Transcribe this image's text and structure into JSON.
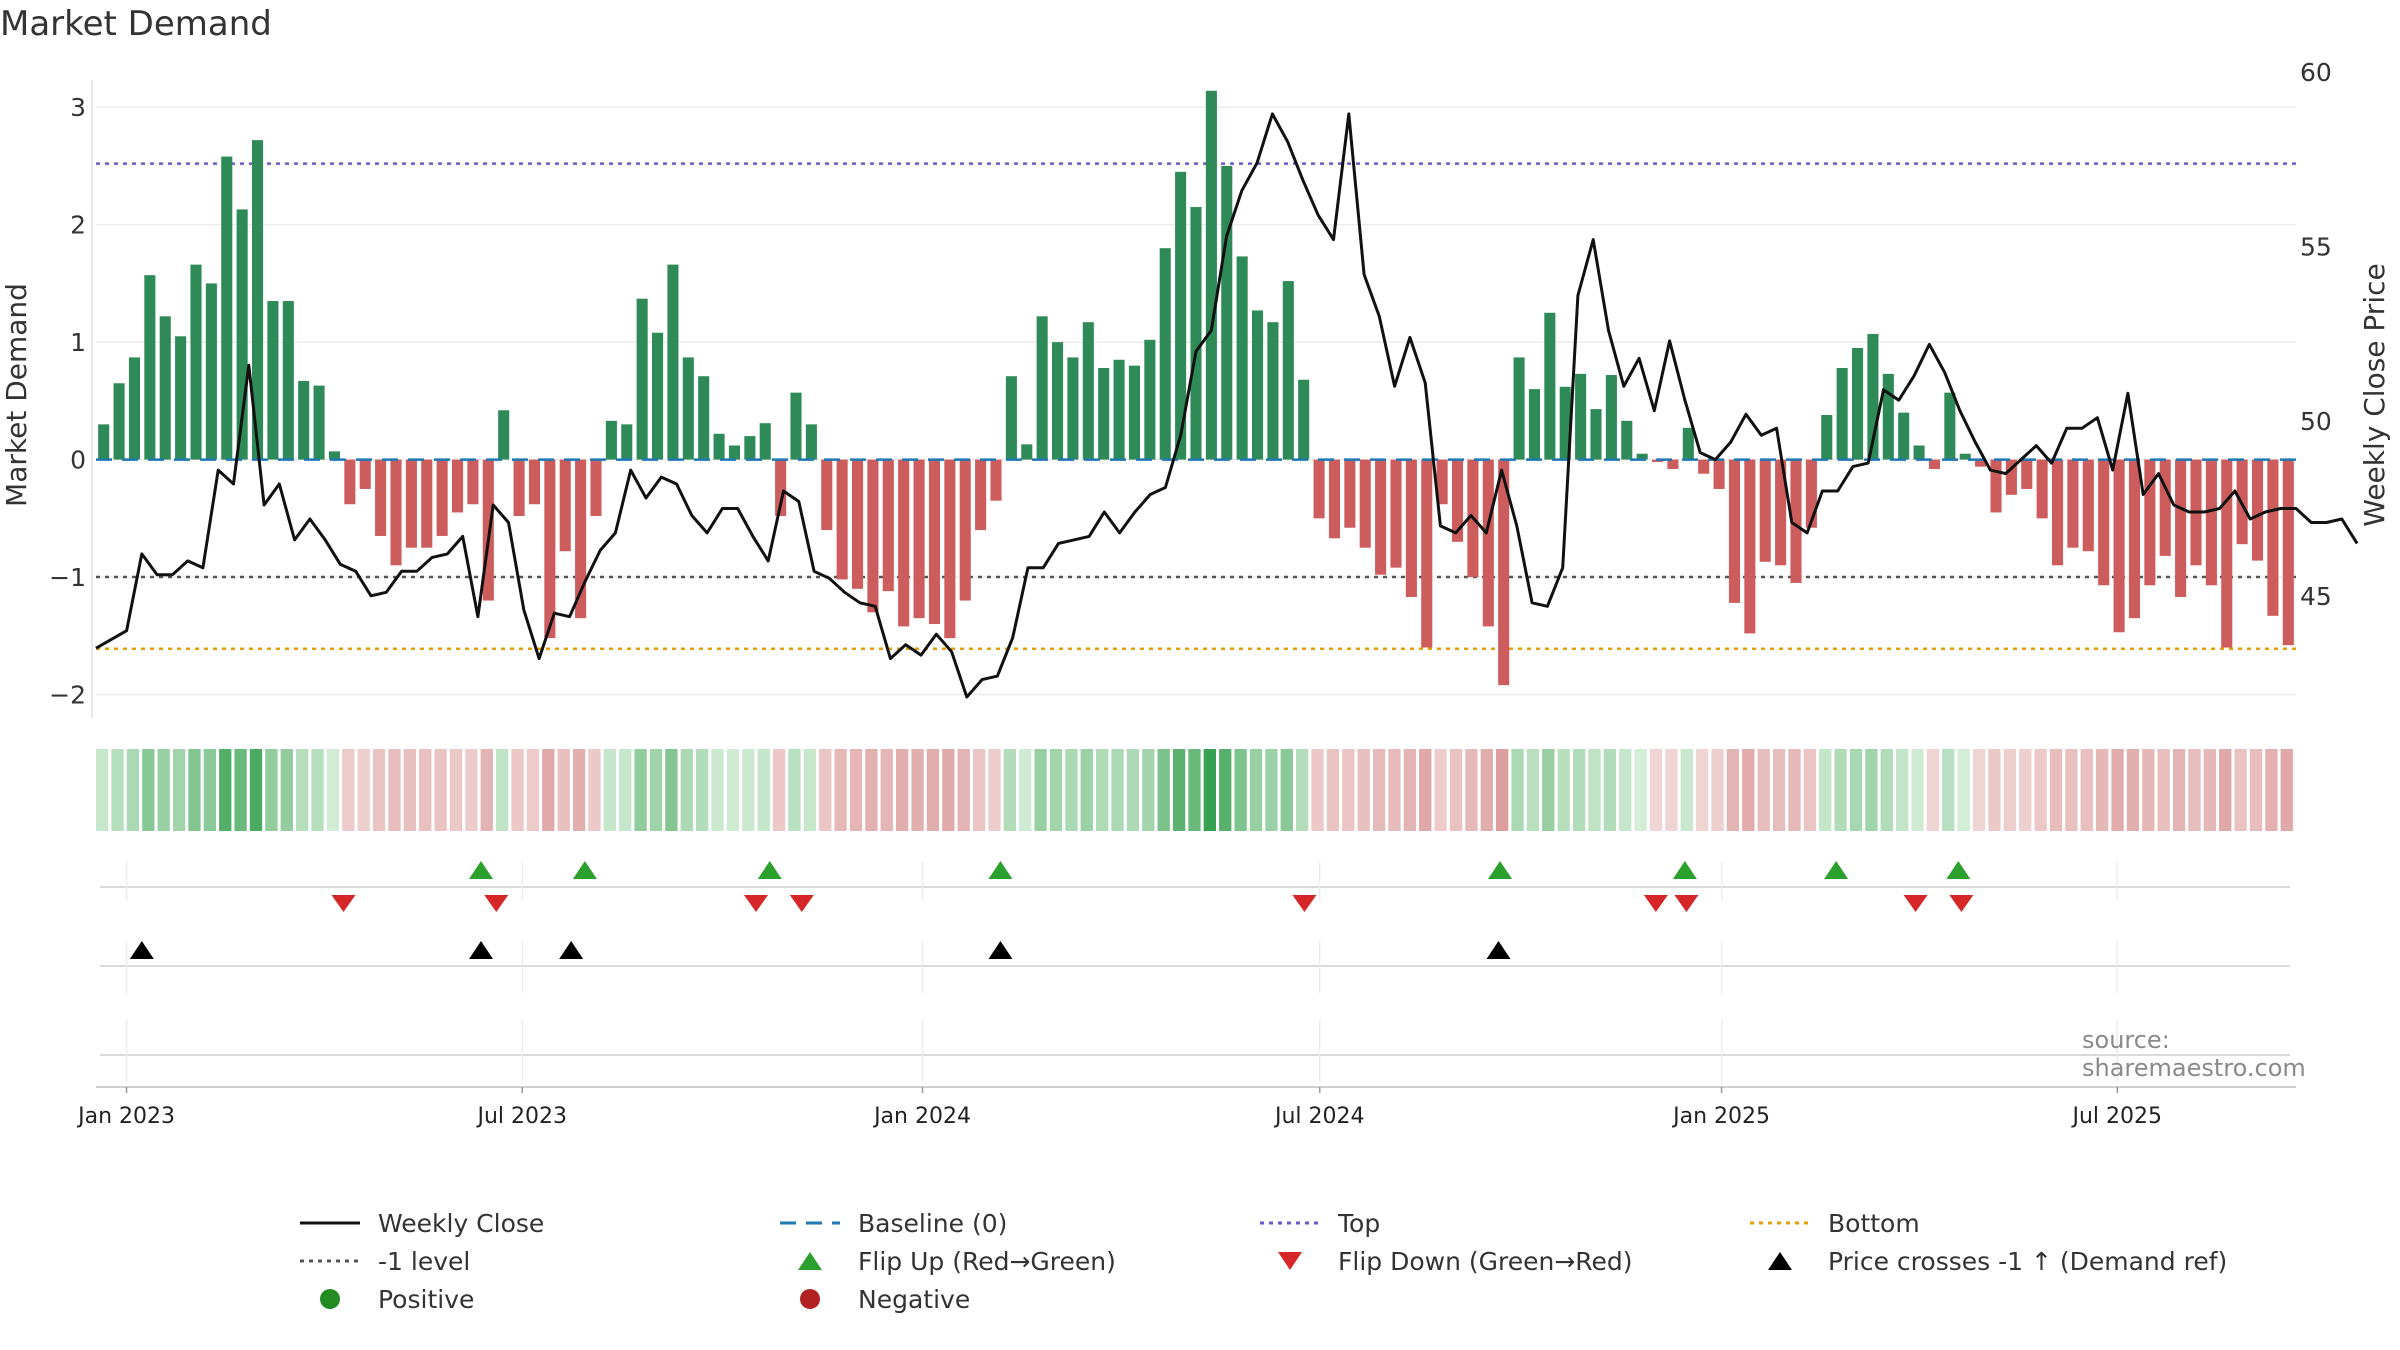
{
  "title": "Market Demand",
  "source": "source: sharemaestro.com",
  "colors": {
    "positive": "#2e8b57",
    "negative": "#cd5c5c",
    "close": "#111111",
    "baseline": "#1f77b4",
    "top": "#6a5acd",
    "bottom": "#e69f00",
    "minus1": "#555555",
    "flip_up": "#2ca02c",
    "flip_down": "#d62728",
    "cross": "#000000",
    "legend_positive": "#228b22",
    "legend_negative": "#b22222"
  },
  "chart_data": {
    "type": "bar+line",
    "title": "Market Demand",
    "ylabel": "Market Demand",
    "y2label": "Weekly Close Price",
    "ylim": [
      -2.2,
      3.3
    ],
    "y2lim": [
      41.5,
      60
    ],
    "yticks": [
      -2,
      -1,
      0,
      1,
      2,
      3
    ],
    "y2ticks": [
      45,
      50,
      55,
      60
    ],
    "x_range_weeks": [
      -2,
      142
    ],
    "x_ticks": [
      {
        "label": "Jan 2023",
        "week": 0
      },
      {
        "label": "Jul 2023",
        "week": 25.9
      },
      {
        "label": "Jan 2024",
        "week": 52.1
      },
      {
        "label": "Jul 2024",
        "week": 78.1
      },
      {
        "label": "Jan 2025",
        "week": 104.4
      },
      {
        "label": "Jul 2025",
        "week": 130.3
      }
    ],
    "reference_lines": {
      "baseline": 0,
      "top": 2.52,
      "minus1_level": -1,
      "bottom": -1.61
    },
    "demand_values": [
      0.3,
      0.65,
      0.87,
      1.57,
      1.22,
      1.05,
      1.66,
      1.5,
      2.58,
      2.13,
      2.72,
      1.35,
      1.35,
      0.67,
      0.63,
      0.07,
      -0.38,
      -0.25,
      -0.65,
      -0.9,
      -0.75,
      -0.75,
      -0.65,
      -0.45,
      -0.38,
      -1.2,
      0.42,
      -0.48,
      -0.38,
      -1.52,
      -0.78,
      -1.35,
      -0.48,
      0.33,
      0.3,
      1.37,
      1.08,
      1.66,
      0.87,
      0.71,
      0.22,
      0.12,
      0.2,
      0.31,
      -0.48,
      0.57,
      0.3,
      -0.6,
      -1.02,
      -1.1,
      -1.3,
      -1.12,
      -1.42,
      -1.35,
      -1.4,
      -1.52,
      -1.2,
      -0.6,
      -0.35,
      0.71,
      0.13,
      1.22,
      1.0,
      0.87,
      1.17,
      0.78,
      0.85,
      0.8,
      1.02,
      1.8,
      2.45,
      2.15,
      3.14,
      2.5,
      1.73,
      1.27,
      1.17,
      1.52,
      0.68,
      -0.5,
      -0.67,
      -0.58,
      -0.75,
      -0.98,
      -0.92,
      -1.17,
      -1.6,
      -0.38,
      -0.7,
      -1.0,
      -1.42,
      -1.92,
      0.87,
      0.6,
      1.25,
      0.62,
      0.73,
      0.43,
      0.72,
      0.33,
      0.05,
      -0.02,
      -0.08,
      0.27,
      -0.12,
      -0.25,
      -1.22,
      -1.48,
      -0.87,
      -0.9,
      -1.05,
      -0.58,
      0.38,
      0.78,
      0.95,
      1.07,
      0.73,
      0.4,
      0.12,
      -0.08,
      0.57,
      0.05,
      -0.06,
      -0.45,
      -0.3,
      -0.25,
      -0.5,
      -0.9,
      -0.75,
      -0.78,
      -1.07,
      -1.47,
      -1.35,
      -1.07,
      -0.82,
      -1.17,
      -0.9,
      -1.07,
      -1.6,
      -0.72,
      -0.86,
      -1.33,
      -1.58
    ],
    "weekly_close": [
      [
        -2,
        43.5
      ],
      [
        0,
        44.0
      ],
      [
        1,
        46.2
      ],
      [
        2,
        45.6
      ],
      [
        3,
        45.6
      ],
      [
        4,
        46.0
      ],
      [
        5,
        45.8
      ],
      [
        6,
        48.6
      ],
      [
        7,
        48.2
      ],
      [
        8,
        51.6
      ],
      [
        9,
        47.6
      ],
      [
        10,
        48.2
      ],
      [
        11,
        46.6
      ],
      [
        12,
        47.2
      ],
      [
        13,
        46.6
      ],
      [
        14,
        45.9
      ],
      [
        15,
        45.7
      ],
      [
        16,
        45.0
      ],
      [
        17,
        45.1
      ],
      [
        18,
        45.7
      ],
      [
        19,
        45.7
      ],
      [
        20,
        46.1
      ],
      [
        21,
        46.2
      ],
      [
        22,
        46.7
      ],
      [
        23,
        44.4
      ],
      [
        24,
        47.6
      ],
      [
        25,
        47.1
      ],
      [
        26,
        44.6
      ],
      [
        27,
        43.2
      ],
      [
        28,
        44.5
      ],
      [
        29,
        44.4
      ],
      [
        30,
        45.4
      ],
      [
        31,
        46.3
      ],
      [
        32,
        46.8
      ],
      [
        33,
        48.6
      ],
      [
        34,
        47.8
      ],
      [
        35,
        48.4
      ],
      [
        36,
        48.2
      ],
      [
        37,
        47.3
      ],
      [
        38,
        46.8
      ],
      [
        39,
        47.5
      ],
      [
        40,
        47.5
      ],
      [
        41,
        46.7
      ],
      [
        42,
        46.0
      ],
      [
        43,
        48.0
      ],
      [
        44,
        47.7
      ],
      [
        45,
        45.7
      ],
      [
        46,
        45.5
      ],
      [
        47,
        45.1
      ],
      [
        48,
        44.8
      ],
      [
        49,
        44.7
      ],
      [
        50,
        43.2
      ],
      [
        51,
        43.6
      ],
      [
        52,
        43.3
      ],
      [
        53,
        43.9
      ],
      [
        54,
        43.4
      ],
      [
        55,
        42.1
      ],
      [
        56,
        42.6
      ],
      [
        57,
        42.7
      ],
      [
        58,
        43.8
      ],
      [
        59,
        45.8
      ],
      [
        60,
        45.8
      ],
      [
        61,
        46.5
      ],
      [
        62,
        46.6
      ],
      [
        63,
        46.7
      ],
      [
        64,
        47.4
      ],
      [
        65,
        46.8
      ],
      [
        66,
        47.4
      ],
      [
        67,
        47.9
      ],
      [
        68,
        48.1
      ],
      [
        69,
        49.6
      ],
      [
        70,
        52.0
      ],
      [
        71,
        52.6
      ],
      [
        72,
        55.3
      ],
      [
        73,
        56.6
      ],
      [
        74,
        57.4
      ],
      [
        75,
        58.8
      ],
      [
        76,
        58.0
      ],
      [
        77,
        56.9
      ],
      [
        78,
        55.9
      ],
      [
        79,
        55.2
      ],
      [
        80,
        58.8
      ],
      [
        81,
        54.2
      ],
      [
        82,
        53.0
      ],
      [
        83,
        51.0
      ],
      [
        84,
        52.4
      ],
      [
        85,
        51.1
      ],
      [
        86,
        47.0
      ],
      [
        87,
        46.8
      ],
      [
        88,
        47.3
      ],
      [
        89,
        46.8
      ],
      [
        90,
        48.6
      ],
      [
        91,
        47.0
      ],
      [
        92,
        44.8
      ],
      [
        93,
        44.7
      ],
      [
        94,
        45.8
      ],
      [
        95,
        53.6
      ],
      [
        96,
        55.2
      ],
      [
        97,
        52.6
      ],
      [
        98,
        51.0
      ],
      [
        99,
        51.8
      ],
      [
        100,
        50.3
      ],
      [
        101,
        52.3
      ],
      [
        102,
        50.6
      ],
      [
        103,
        49.1
      ],
      [
        104,
        48.9
      ],
      [
        105,
        49.4
      ],
      [
        106,
        50.2
      ],
      [
        107,
        49.6
      ],
      [
        108,
        49.8
      ],
      [
        109,
        47.1
      ],
      [
        110,
        46.8
      ],
      [
        111,
        48.0
      ],
      [
        112,
        48.0
      ],
      [
        113,
        48.7
      ],
      [
        114,
        48.8
      ],
      [
        115,
        50.9
      ],
      [
        116,
        50.6
      ],
      [
        117,
        51.3
      ],
      [
        118,
        52.2
      ],
      [
        119,
        51.4
      ],
      [
        120,
        50.3
      ],
      [
        121,
        49.4
      ],
      [
        122,
        48.6
      ],
      [
        123,
        48.5
      ],
      [
        124,
        48.9
      ],
      [
        125,
        49.3
      ],
      [
        126,
        48.8
      ],
      [
        127,
        49.8
      ],
      [
        128,
        49.8
      ],
      [
        129,
        50.1
      ],
      [
        130,
        48.6
      ],
      [
        131,
        50.8
      ],
      [
        132,
        47.9
      ],
      [
        133,
        48.5
      ],
      [
        134,
        47.6
      ],
      [
        135,
        47.4
      ],
      [
        136,
        47.4
      ],
      [
        137,
        47.5
      ],
      [
        138,
        48.0
      ],
      [
        139,
        47.2
      ],
      [
        140,
        47.4
      ],
      [
        141,
        47.5
      ],
      [
        142,
        47.5
      ],
      [
        143,
        47.1
      ],
      [
        144,
        47.1
      ],
      [
        145,
        47.2
      ],
      [
        146,
        46.5
      ]
    ],
    "flip_up_weeks": [
      23.2,
      30.0,
      42.1,
      57.2,
      89.9,
      102.0,
      111.9,
      119.9
    ],
    "flip_down_weeks": [
      14.2,
      24.2,
      41.2,
      44.2,
      77.1,
      100.1,
      102.1,
      117.1,
      120.1
    ],
    "cross_weeks": [
      1.0,
      23.2,
      29.1,
      57.2,
      89.8
    ],
    "legend": [
      {
        "label": "Weekly Close",
        "style": "line-solid"
      },
      {
        "label": "Baseline (0)",
        "style": "line-dashed"
      },
      {
        "label": "Top",
        "style": "line-dotted"
      },
      {
        "label": "Bottom",
        "style": "line-dotted"
      },
      {
        "label": "-1 level",
        "style": "line-dotted"
      },
      {
        "label": "Flip Up (Red→Green)",
        "style": "triangle-up"
      },
      {
        "label": "Flip Down (Green→Red)",
        "style": "triangle-down"
      },
      {
        "label": "Price crosses -1 ↑ (Demand ref)",
        "style": "triangle-up"
      },
      {
        "label": "Positive",
        "style": "dot"
      },
      {
        "label": "Negative",
        "style": "dot"
      }
    ]
  }
}
